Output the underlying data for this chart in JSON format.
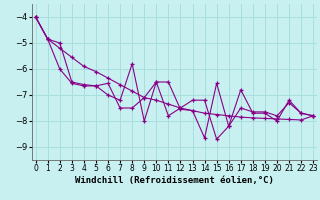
{
  "xlabel": "Windchill (Refroidissement éolien,°C)",
  "background_color": "#c8f0f0",
  "grid_color": "#a8dede",
  "line_color": "#880088",
  "line1": {
    "x": [
      0,
      1,
      2,
      3,
      4,
      5,
      6,
      7,
      8,
      9,
      10,
      11,
      12,
      13,
      14,
      15,
      16,
      17,
      18,
      19,
      20,
      21,
      22,
      23
    ],
    "y": [
      -4.0,
      -4.85,
      -5.2,
      -5.55,
      -5.9,
      -6.1,
      -6.35,
      -6.6,
      -6.85,
      -7.1,
      -7.2,
      -7.35,
      -7.5,
      -7.6,
      -7.7,
      -7.75,
      -7.8,
      -7.85,
      -7.88,
      -7.9,
      -7.92,
      -7.94,
      -7.96,
      -7.8
    ]
  },
  "line2": {
    "x": [
      0,
      1,
      2,
      3,
      4,
      5,
      6,
      7,
      8,
      9,
      10,
      11,
      12,
      13,
      14,
      15,
      16,
      17,
      18,
      19,
      20,
      21,
      22,
      23
    ],
    "y": [
      -4.0,
      -4.85,
      -5.0,
      -6.5,
      -6.6,
      -6.65,
      -7.0,
      -7.2,
      -5.8,
      -8.0,
      -6.5,
      -7.8,
      -7.5,
      -7.2,
      -7.2,
      -8.7,
      -8.2,
      -6.8,
      -7.7,
      -7.7,
      -8.0,
      -7.2,
      -7.7,
      -7.8
    ]
  },
  "line3": {
    "x": [
      0,
      1,
      2,
      3,
      4,
      5,
      6,
      7,
      8,
      9,
      10,
      11,
      12,
      13,
      14,
      15,
      16,
      17,
      18,
      19,
      20,
      21,
      22,
      23
    ],
    "y": [
      -4.0,
      -4.85,
      -6.0,
      -6.55,
      -6.65,
      -6.65,
      -6.55,
      -7.5,
      -7.5,
      -7.1,
      -6.5,
      -6.5,
      -7.55,
      -7.6,
      -8.65,
      -6.55,
      -8.2,
      -7.5,
      -7.65,
      -7.65,
      -7.8,
      -7.3,
      -7.7,
      -7.8
    ]
  },
  "ylim": [
    -9.5,
    -3.5
  ],
  "xlim": [
    -0.3,
    23.3
  ],
  "yticks": [
    -4,
    -5,
    -6,
    -7,
    -8,
    -9
  ],
  "xticks": [
    0,
    1,
    2,
    3,
    4,
    5,
    6,
    7,
    8,
    9,
    10,
    11,
    12,
    13,
    14,
    15,
    16,
    17,
    18,
    19,
    20,
    21,
    22,
    23
  ],
  "tick_fontsize": 5.5,
  "xlabel_fontsize": 6.5
}
